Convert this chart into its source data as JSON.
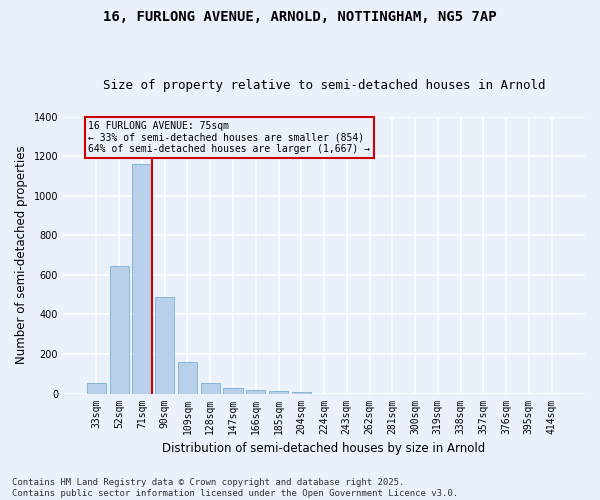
{
  "title_line1": "16, FURLONG AVENUE, ARNOLD, NOTTINGHAM, NG5 7AP",
  "title_line2": "Size of property relative to semi-detached houses in Arnold",
  "xlabel": "Distribution of semi-detached houses by size in Arnold",
  "ylabel": "Number of semi-detached properties",
  "bar_color": "#B8D0EA",
  "bar_edge_color": "#7BAFD4",
  "categories": [
    "33sqm",
    "52sqm",
    "71sqm",
    "90sqm",
    "109sqm",
    "128sqm",
    "147sqm",
    "166sqm",
    "185sqm",
    "204sqm",
    "224sqm",
    "243sqm",
    "262sqm",
    "281sqm",
    "300sqm",
    "319sqm",
    "338sqm",
    "357sqm",
    "376sqm",
    "395sqm",
    "414sqm"
  ],
  "values": [
    55,
    645,
    1160,
    490,
    160,
    55,
    30,
    20,
    15,
    10,
    0,
    0,
    0,
    0,
    0,
    0,
    0,
    0,
    0,
    0,
    0
  ],
  "ylim": [
    0,
    1400
  ],
  "yticks": [
    0,
    200,
    400,
    600,
    800,
    1000,
    1200,
    1400
  ],
  "annotation_text_line1": "16 FURLONG AVENUE: 75sqm",
  "annotation_text_line2": "← 33% of semi-detached houses are smaller (854)",
  "annotation_text_line3": "64% of semi-detached houses are larger (1,667) →",
  "footer_line1": "Contains HM Land Registry data © Crown copyright and database right 2025.",
  "footer_line2": "Contains public sector information licensed under the Open Government Licence v3.0.",
  "bg_color": "#EBF1FA",
  "grid_color": "#FFFFFF",
  "vline_color": "#CC0000",
  "title_fontsize": 10,
  "subtitle_fontsize": 9,
  "tick_fontsize": 7,
  "label_fontsize": 8.5,
  "footer_fontsize": 6.5,
  "vline_pos": 2.45
}
